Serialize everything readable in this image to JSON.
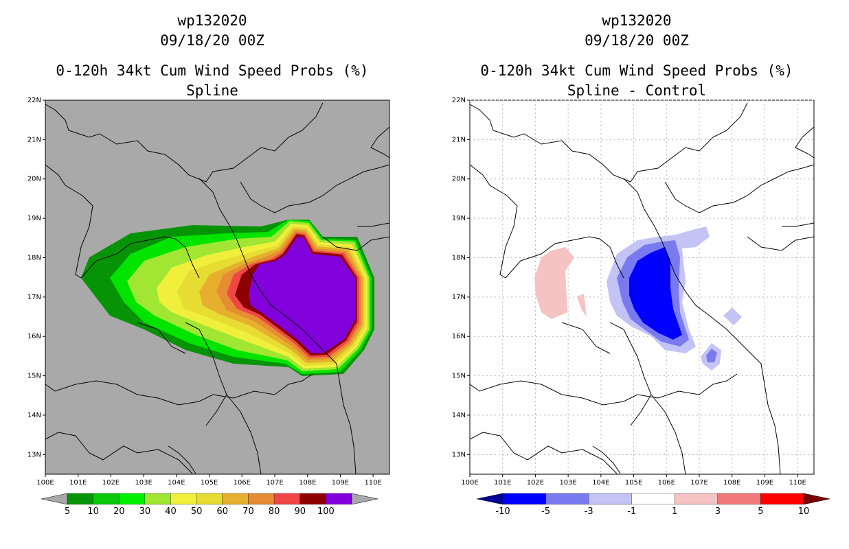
{
  "panels": [
    {
      "storm_id": "wp132020",
      "datetime": "09/18/20 00Z",
      "product": "0-120h 34kt Cum Wind Speed Probs (%)",
      "subtitle": "Spline",
      "background": "#a9a9a9",
      "colorbar": {
        "labels": [
          "5",
          "10",
          "20",
          "30",
          "40",
          "50",
          "60",
          "70",
          "80",
          "90",
          "100"
        ],
        "colors": [
          "#069406",
          "#0ac80a",
          "#00f000",
          "#a0e632",
          "#f0f03c",
          "#e6dc32",
          "#e6af2d",
          "#e68c32",
          "#f04646",
          "#8c0000",
          "#8200dc"
        ],
        "left_arrow": "#a9a9a9",
        "right_arrow": "#a9a9a9"
      }
    },
    {
      "storm_id": "wp132020",
      "datetime": "09/18/20 00Z",
      "product": "0-120h 34kt Cum Wind Speed Probs (%)",
      "subtitle": "Spline - Control",
      "background": "#ffffff",
      "colorbar": {
        "labels": [
          "-10",
          "-5",
          "-3",
          "-1",
          "1",
          "3",
          "5",
          "10"
        ],
        "colors": [
          "#0000ff",
          "#7a7af0",
          "#c3c3f5",
          "#ffffff",
          "#f5c3c3",
          "#f07a7a",
          "#ff0000"
        ],
        "left_arrow": "#000096",
        "right_arrow": "#780000"
      }
    }
  ],
  "axes": {
    "lon_ticks": [
      "100E",
      "101E",
      "102E",
      "103E",
      "104E",
      "105E",
      "106E",
      "107E",
      "108E",
      "109E",
      "110E"
    ],
    "lat_ticks": [
      "13N",
      "14N",
      "15N",
      "16N",
      "17N",
      "18N",
      "19N",
      "20N",
      "21N",
      "22N"
    ],
    "lon_range": [
      100,
      110.5
    ],
    "lat_range": [
      12.5,
      22
    ]
  }
}
